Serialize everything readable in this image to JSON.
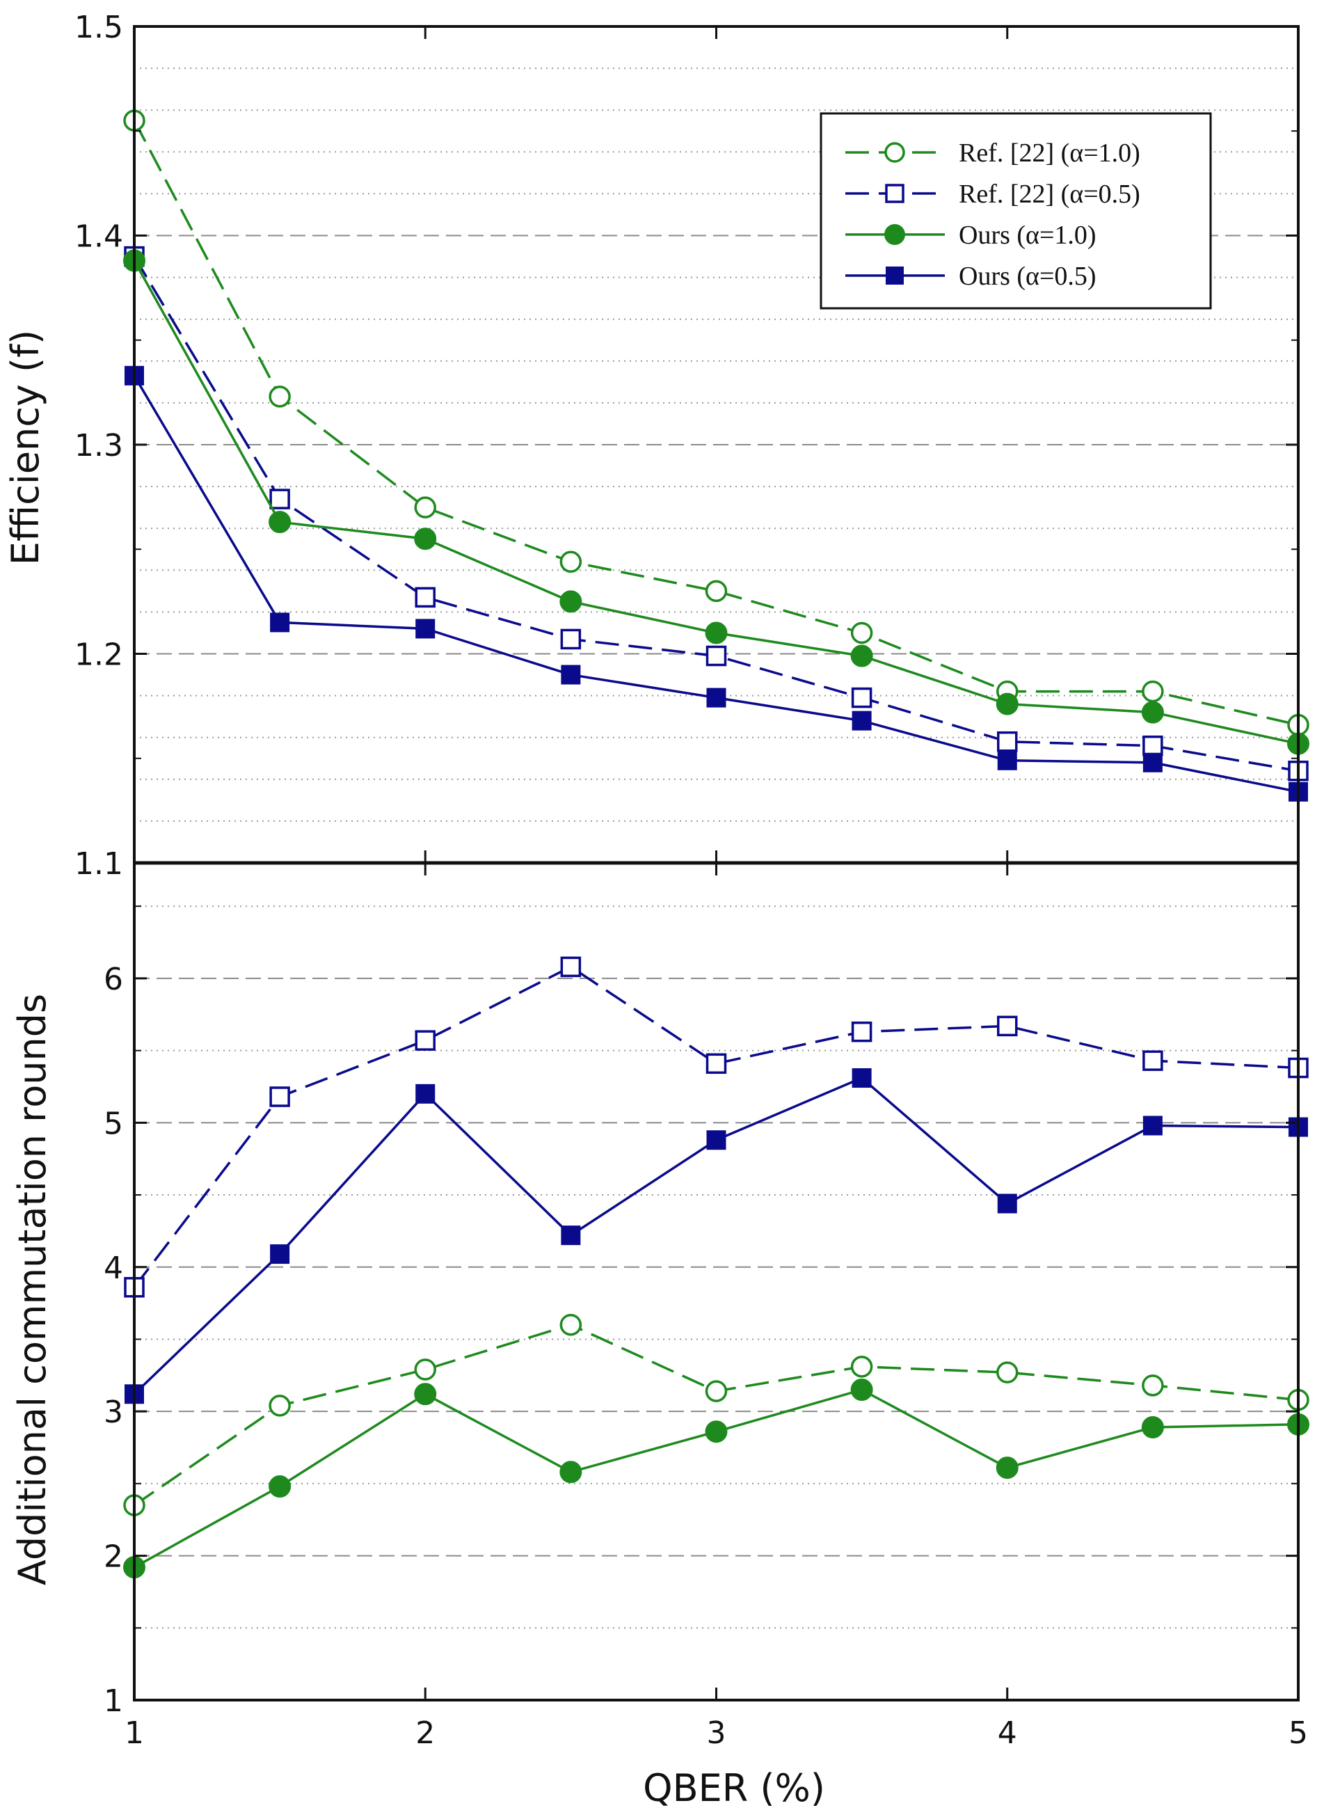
{
  "chart_data": [
    {
      "type": "line",
      "title": "",
      "xlabel": "",
      "ylabel": "Efficiency (f)",
      "xlim": [
        1,
        5
      ],
      "ylim": [
        1.1,
        1.5
      ],
      "x": [
        1,
        1.5,
        2,
        2.5,
        3,
        3.5,
        4,
        4.5,
        5
      ],
      "yticks": [
        1.1,
        1.2,
        1.3,
        1.4,
        1.5
      ],
      "ytick_labels": [
        "1.1",
        "1.2",
        "1.3",
        "1.4",
        "1.5"
      ],
      "grid": "dashed at major ticks, dotted at minor ticks",
      "legend": "top-right",
      "series": [
        {
          "name": "Ref. [22] (α=1.0)",
          "color": "#1e8a1e",
          "style": "dashed",
          "marker": "open-circle",
          "values": [
            1.455,
            1.323,
            1.27,
            1.244,
            1.23,
            1.21,
            1.182,
            1.182,
            1.166
          ]
        },
        {
          "name": "Ref. [22] (α=0.5)",
          "color": "#0a0a8c",
          "style": "dashed",
          "marker": "open-square",
          "values": [
            1.39,
            1.274,
            1.227,
            1.207,
            1.199,
            1.179,
            1.158,
            1.156,
            1.144
          ]
        },
        {
          "name": "Ours  (α=1.0)",
          "color": "#1e8a1e",
          "style": "solid",
          "marker": "filled-circle",
          "values": [
            1.388,
            1.263,
            1.255,
            1.225,
            1.21,
            1.199,
            1.176,
            1.172,
            1.157
          ]
        },
        {
          "name": "Ours  (α=0.5)",
          "color": "#0a0a8c",
          "style": "solid",
          "marker": "filled-square",
          "values": [
            1.333,
            1.215,
            1.212,
            1.19,
            1.179,
            1.168,
            1.149,
            1.148,
            1.134
          ]
        }
      ]
    },
    {
      "type": "line",
      "title": "",
      "xlabel": "QBER (%)",
      "ylabel": "Additional commutation rounds",
      "xlim": [
        1,
        5
      ],
      "ylim": [
        1,
        6.8
      ],
      "x": [
        1,
        1.5,
        2,
        2.5,
        3,
        3.5,
        4,
        4.5,
        5
      ],
      "xticks": [
        1,
        2,
        3,
        4,
        5
      ],
      "xtick_labels": [
        "1",
        "2",
        "3",
        "4",
        "5"
      ],
      "yticks": [
        1,
        2,
        3,
        4,
        5,
        6
      ],
      "ytick_labels": [
        "1",
        "2",
        "3",
        "4",
        "5",
        "6"
      ],
      "grid": "dashed at major ticks, dotted at minor ticks",
      "series": [
        {
          "name": "Ref. [22] (α=0.5)",
          "color": "#0a0a8c",
          "style": "dashed",
          "marker": "open-square",
          "values": [
            3.86,
            5.18,
            5.57,
            6.08,
            5.41,
            5.63,
            5.67,
            5.43,
            5.38
          ]
        },
        {
          "name": "Ours  (α=0.5)",
          "color": "#0a0a8c",
          "style": "solid",
          "marker": "filled-square",
          "values": [
            3.12,
            4.09,
            5.2,
            4.22,
            4.88,
            5.31,
            4.44,
            4.98,
            4.97
          ]
        },
        {
          "name": "Ref. [22] (α=1.0)",
          "color": "#1e8a1e",
          "style": "dashed",
          "marker": "open-circle",
          "values": [
            2.35,
            3.04,
            3.29,
            3.6,
            3.14,
            3.31,
            3.27,
            3.18,
            3.08
          ]
        },
        {
          "name": "Ours  (α=1.0)",
          "color": "#1e8a1e",
          "style": "solid",
          "marker": "filled-circle",
          "values": [
            1.92,
            2.48,
            3.12,
            2.58,
            2.86,
            3.15,
            2.61,
            2.89,
            2.91
          ]
        }
      ]
    }
  ]
}
